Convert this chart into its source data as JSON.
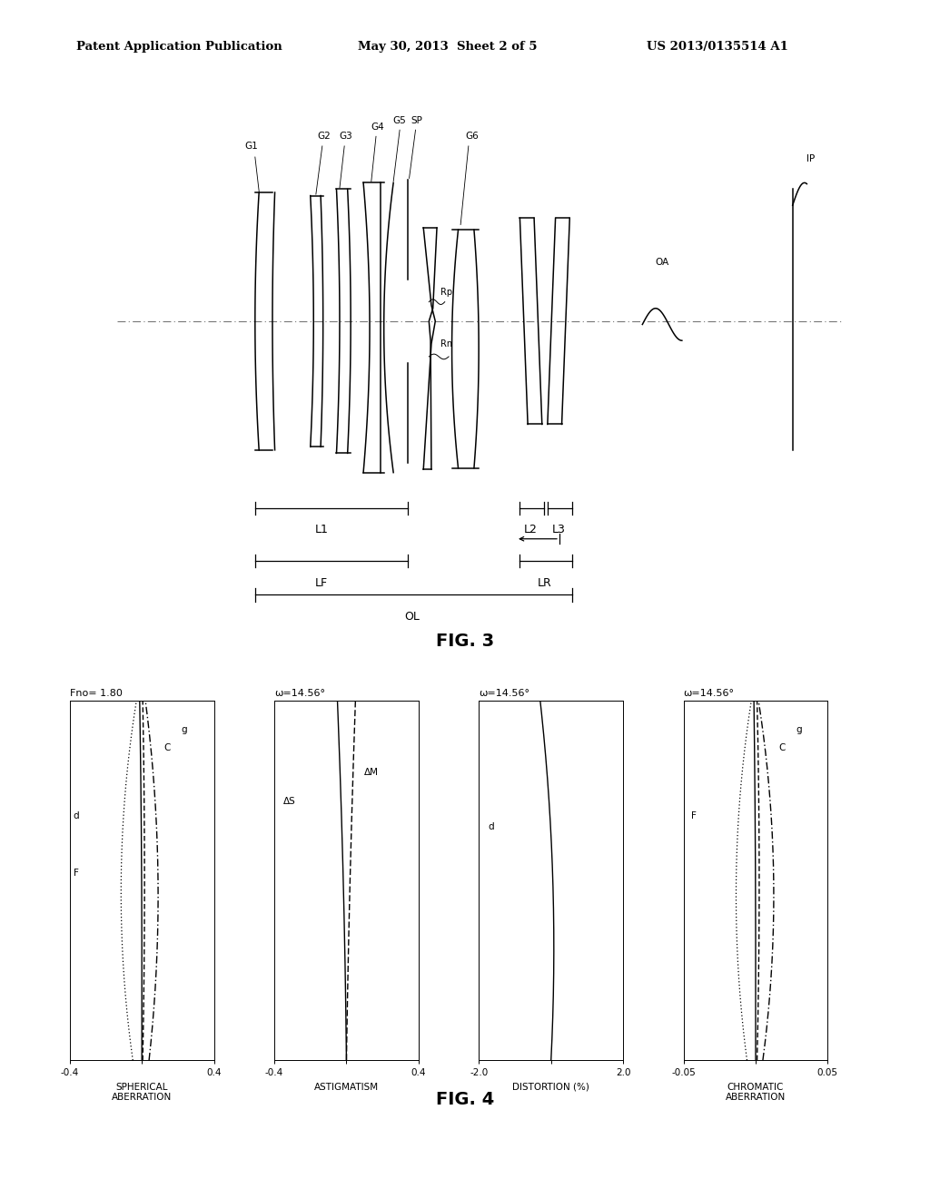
{
  "header_left": "Patent Application Publication",
  "header_center": "May 30, 2013  Sheet 2 of 5",
  "header_right": "US 2013/0135514 A1",
  "fig3_label": "FIG. 3",
  "fig4_label": "FIG. 4",
  "background_color": "#ffffff",
  "text_color": "#000000",
  "plot1_title": "Fno= 1.80",
  "plot2_title": "ω=14.56°",
  "plot3_title": "ω=14.56°",
  "plot4_title": "ω=14.56°",
  "plot1_label": "SPHERICAL\nABERRATION",
  "plot2_label": "ASTIGMATISM",
  "plot3_label": "DISTORTION (%)",
  "plot4_label": "CHROMATIC\nABERRATION"
}
